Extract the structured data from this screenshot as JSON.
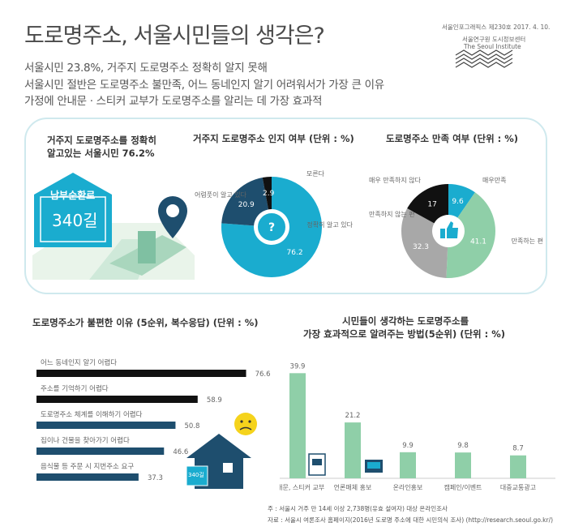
{
  "header": {
    "title": "도로명주소, 서울시민들의 생각은?",
    "subtitles": [
      "서울시민 23.8%, 거주지 도로명주소 정확히 알지 못해",
      "서울시민 절반은 도로명주소 불만족, 어느 동네인지 알기 어려워서가 가장 큰 이유",
      "가정에 안내문 · 스티커 교부가 도로명주소를 알리는 데 가장 효과적"
    ],
    "issue": "서울인포그래픽스 제230호 2017. 4. 10.",
    "org_kr": "서울연구원 도시정보센터",
    "org_en": "The Seoul Institute"
  },
  "panel1": {
    "text_line1": "거주지 도로명주소를 정확히",
    "text_line2": "알고있는 서울시민 76.2%",
    "sign_road": "남부순환로",
    "sign_num": "340길"
  },
  "colors": {
    "teal": "#1aaccf",
    "navy": "#1e4e6e",
    "green": "#8fcfa8",
    "gray": "#a8a8a8",
    "black": "#111111"
  },
  "chart_data": [
    {
      "type": "pie",
      "title": "거주지 도로명주소 인지 여부 (단위 : %)",
      "labels": [
        "정확히 알고 있다",
        "어렴풋이 알고 있다",
        "모른다"
      ],
      "values": [
        76.2,
        20.9,
        2.9
      ],
      "colors": [
        "#1aaccf",
        "#1e4e6e",
        "#111111"
      ]
    },
    {
      "type": "pie",
      "title": "도로명주소 만족 여부 (단위 : %)",
      "labels": [
        "매우만족",
        "만족하는 편",
        "만족하지 않는 편",
        "매우 만족하지 않다"
      ],
      "values": [
        9.6,
        41.1,
        32.3,
        17.0
      ],
      "colors": [
        "#1aaccf",
        "#8fcfa8",
        "#a8a8a8",
        "#111111"
      ]
    },
    {
      "type": "bar",
      "orientation": "horizontal",
      "title": "도로명주소가 불편한 이유 (5순위, 복수응답) (단위 : %)",
      "categories": [
        "어느 동네인지 알기 어렵다",
        "주소를 기억하기 어렵다",
        "도로명주소 체계를 이해하기 어렵다",
        "집이나 건물을 찾아가기 어렵다",
        "음식물 등 주문 시 지번주소 요구"
      ],
      "values": [
        76.6,
        58.9,
        50.8,
        46.6,
        37.3
      ],
      "colors": [
        "#111111",
        "#111111",
        "#1e4e6e",
        "#1e4e6e",
        "#1e4e6e"
      ]
    },
    {
      "type": "bar",
      "orientation": "vertical",
      "title_line1": "시민들이 생각하는 도로명주소를",
      "title_line2": "가장 효과적으로 알려주는 방법(5순위) (단위 : %)",
      "categories": [
        "안내문, 스티커 교부",
        "언론매체 홍보",
        "온라인홍보",
        "캠페인/이벤트",
        "대중교통광고"
      ],
      "values": [
        39.9,
        21.2,
        9.9,
        9.8,
        8.7
      ],
      "color": "#8fcfa8"
    }
  ],
  "footnotes": {
    "note": "주 : 서울시 거주 만 14세 이상 2,738명(유효 설여자) 대상 온라인조사",
    "source": "자료 : 서울시 여론조사 홈페이지(2016년 도로명 주소에 대한 시민의식 조사) (http://research.seoul.go.kr/)"
  }
}
